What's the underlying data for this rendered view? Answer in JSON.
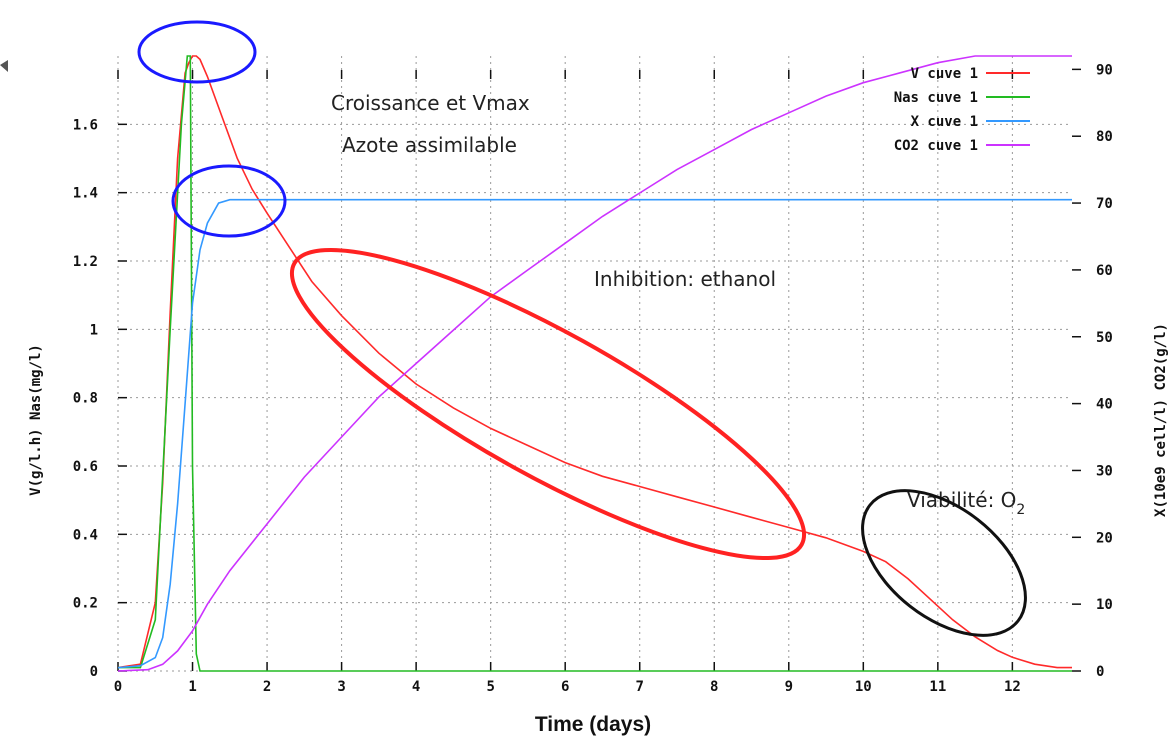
{
  "chart_data": {
    "type": "line",
    "xlabel": "Time (days)",
    "ylabel_left": "V(g/l.h)   Nas(mg/l)",
    "ylabel_right": "X(10e9 cell/l)   CO2(g/l)",
    "xlim": [
      0,
      12.8
    ],
    "ylim_left": [
      0,
      1.8
    ],
    "ylim_right": [
      0,
      92
    ],
    "x_ticks": [
      "0",
      "1",
      "2",
      "3",
      "4",
      "5",
      "6",
      "7",
      "8",
      "9",
      "10",
      "11",
      "12"
    ],
    "y_left_ticks": [
      "0",
      "0.2",
      "0.4",
      "0.6",
      "0.8",
      "1",
      "1.2",
      "1.4",
      "1.6"
    ],
    "y_right_ticks": [
      "0",
      "10",
      "20",
      "30",
      "40",
      "50",
      "60",
      "70",
      "80",
      "90"
    ],
    "grid": true,
    "legend_position": "top-right",
    "series": [
      {
        "name": "V cuve 1",
        "color": "#ff2a2a",
        "axis": "left",
        "x": [
          0,
          0.3,
          0.5,
          0.6,
          0.7,
          0.8,
          0.9,
          0.95,
          1.0,
          1.05,
          1.1,
          1.2,
          1.4,
          1.6,
          1.8,
          2.0,
          2.3,
          2.6,
          3,
          3.5,
          4,
          4.5,
          5,
          5.5,
          6,
          6.5,
          7,
          7.5,
          8,
          8.5,
          9,
          9.5,
          10,
          10.3,
          10.6,
          10.9,
          11.2,
          11.5,
          11.8,
          12.0,
          12.3,
          12.6,
          12.8
        ],
        "y": [
          0.01,
          0.02,
          0.2,
          0.55,
          1.05,
          1.5,
          1.75,
          1.78,
          1.8,
          1.8,
          1.79,
          1.74,
          1.62,
          1.5,
          1.41,
          1.34,
          1.24,
          1.14,
          1.04,
          0.93,
          0.84,
          0.77,
          0.71,
          0.66,
          0.61,
          0.57,
          0.54,
          0.51,
          0.48,
          0.45,
          0.42,
          0.39,
          0.35,
          0.32,
          0.27,
          0.21,
          0.15,
          0.1,
          0.06,
          0.04,
          0.02,
          0.01,
          0.01
        ]
      },
      {
        "name": "Nas cuve 1",
        "color": "#22bb22",
        "axis": "left",
        "x": [
          0,
          0.3,
          0.5,
          0.7,
          0.85,
          0.93,
          0.97,
          1.0,
          1.05,
          1.1,
          12.8
        ],
        "y": [
          0.01,
          0.01,
          0.15,
          1.0,
          1.6,
          1.8,
          1.8,
          0.6,
          0.05,
          0.0,
          0.0
        ]
      },
      {
        "name": "X cuve 1",
        "color": "#3399ff",
        "axis": "right",
        "x": [
          0,
          0.3,
          0.5,
          0.6,
          0.7,
          0.8,
          0.9,
          1.0,
          1.1,
          1.2,
          1.35,
          1.5,
          1.7,
          2,
          4,
          8,
          12.8
        ],
        "y": [
          0.5,
          0.8,
          2,
          5,
          13,
          25,
          40,
          55,
          63,
          67,
          70,
          70.5,
          70.5,
          70.5,
          70.5,
          70.5,
          70.5
        ]
      },
      {
        "name": "CO2 cuve 1",
        "color": "#cc33ff",
        "axis": "right",
        "x": [
          0,
          0.4,
          0.6,
          0.8,
          1.0,
          1.2,
          1.5,
          2,
          2.5,
          3,
          3.5,
          4,
          4.5,
          5,
          5.5,
          6,
          6.5,
          7,
          7.5,
          8,
          8.5,
          9,
          9.5,
          10,
          10.5,
          11,
          11.5,
          12,
          12.3,
          12.8
        ],
        "y": [
          0,
          0.2,
          1,
          3,
          6,
          10,
          15,
          22,
          29,
          35,
          41,
          46,
          51,
          56,
          60,
          64,
          68,
          71.5,
          75,
          78,
          81,
          83.5,
          86,
          88,
          89.5,
          91,
          92,
          92,
          92,
          92
        ]
      }
    ]
  },
  "annotations": {
    "growth_line1": "Croissance et Vmax",
    "growth_line2": "Azote assimilable",
    "inhibition": "Inhibition: ethanol",
    "viability_main": "Viabilité: O",
    "viability_sub": "2"
  },
  "highlight_colors": {
    "blue": "#1a1aff",
    "red": "#ff2222",
    "black": "#111111"
  }
}
